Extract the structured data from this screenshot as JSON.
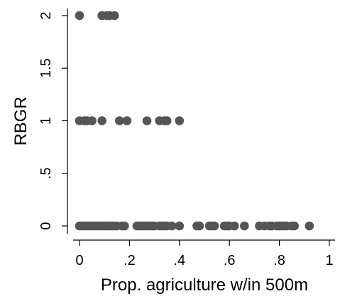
{
  "chart_data": {
    "type": "scatter",
    "title": "",
    "xlabel": "Prop. agriculture w/in 500m",
    "ylabel": "RBGR",
    "xlim": [
      0,
      1
    ],
    "ylim": [
      0,
      2
    ],
    "x_ticks": [
      0,
      0.2,
      0.4,
      0.6,
      0.8,
      1
    ],
    "x_tick_labels": [
      "0",
      ".2",
      ".4",
      ".6",
      ".8",
      "1"
    ],
    "y_ticks": [
      0,
      0.5,
      1,
      1.5,
      2
    ],
    "y_tick_labels": [
      "0",
      ".5",
      "1",
      "1.5",
      "2"
    ],
    "grid": false,
    "legend": "none",
    "marker_color": "#555555",
    "series": [
      {
        "points": [
          [
            0.0,
            2
          ],
          [
            0.09,
            2
          ],
          [
            0.11,
            2
          ],
          [
            0.12,
            2
          ],
          [
            0.14,
            2
          ],
          [
            0.0,
            1
          ],
          [
            0.02,
            1
          ],
          [
            0.03,
            1
          ],
          [
            0.05,
            1
          ],
          [
            0.09,
            1
          ],
          [
            0.16,
            1
          ],
          [
            0.19,
            1
          ],
          [
            0.27,
            1
          ],
          [
            0.32,
            1
          ],
          [
            0.34,
            1
          ],
          [
            0.35,
            1
          ],
          [
            0.4,
            1
          ],
          [
            0.0,
            0
          ],
          [
            0.01,
            0
          ],
          [
            0.02,
            0
          ],
          [
            0.03,
            0
          ],
          [
            0.04,
            0
          ],
          [
            0.05,
            0
          ],
          [
            0.06,
            0
          ],
          [
            0.07,
            0
          ],
          [
            0.08,
            0
          ],
          [
            0.09,
            0
          ],
          [
            0.1,
            0
          ],
          [
            0.11,
            0
          ],
          [
            0.12,
            0
          ],
          [
            0.13,
            0
          ],
          [
            0.14,
            0
          ],
          [
            0.15,
            0
          ],
          [
            0.17,
            0
          ],
          [
            0.18,
            0
          ],
          [
            0.23,
            0
          ],
          [
            0.24,
            0
          ],
          [
            0.25,
            0
          ],
          [
            0.26,
            0
          ],
          [
            0.27,
            0
          ],
          [
            0.28,
            0
          ],
          [
            0.29,
            0
          ],
          [
            0.3,
            0
          ],
          [
            0.32,
            0
          ],
          [
            0.33,
            0
          ],
          [
            0.34,
            0
          ],
          [
            0.35,
            0
          ],
          [
            0.37,
            0
          ],
          [
            0.4,
            0
          ],
          [
            0.47,
            0
          ],
          [
            0.48,
            0
          ],
          [
            0.52,
            0
          ],
          [
            0.53,
            0
          ],
          [
            0.54,
            0
          ],
          [
            0.58,
            0
          ],
          [
            0.59,
            0
          ],
          [
            0.6,
            0
          ],
          [
            0.62,
            0
          ],
          [
            0.66,
            0
          ],
          [
            0.72,
            0
          ],
          [
            0.74,
            0
          ],
          [
            0.76,
            0
          ],
          [
            0.77,
            0
          ],
          [
            0.79,
            0
          ],
          [
            0.8,
            0
          ],
          [
            0.81,
            0
          ],
          [
            0.82,
            0
          ],
          [
            0.83,
            0
          ],
          [
            0.85,
            0
          ],
          [
            0.86,
            0
          ],
          [
            0.92,
            0
          ]
        ]
      }
    ]
  }
}
